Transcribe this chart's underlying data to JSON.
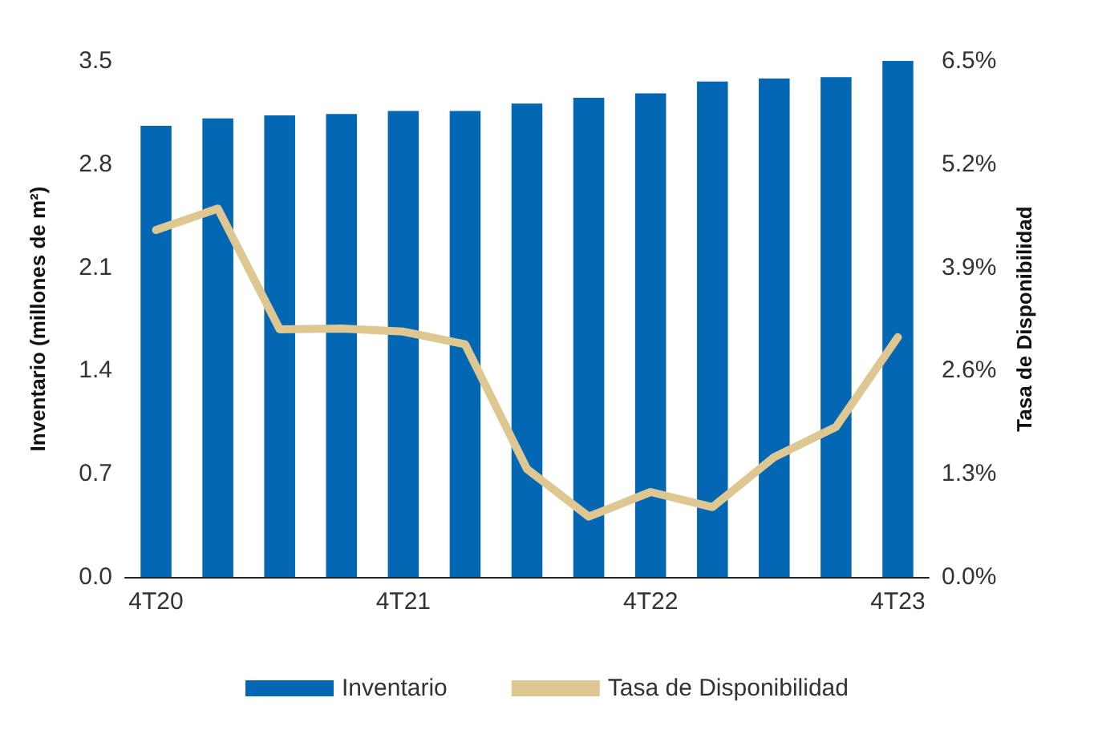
{
  "chart_data": {
    "type": "bar",
    "categories": [
      "4T20",
      null,
      null,
      null,
      "4T21",
      null,
      null,
      null,
      "4T22",
      null,
      null,
      null,
      "4T23"
    ],
    "series": [
      {
        "name": "Inventario",
        "color": "#0467b4",
        "values": [
          3.06,
          3.11,
          3.13,
          3.14,
          3.16,
          3.16,
          3.21,
          3.25,
          3.28,
          3.36,
          3.38,
          3.39,
          3.5
        ]
      },
      {
        "name": "Tasa de Disponibilidad",
        "type": "line",
        "axis": "y2",
        "color": "#dfc791",
        "values": [
          4.37,
          4.64,
          3.12,
          3.13,
          3.09,
          2.93,
          1.36,
          0.76,
          1.07,
          0.88,
          1.51,
          1.89,
          3.02
        ]
      }
    ],
    "ylabel": "Inventario (millones de m²)",
    "y2label": "Tasa de Disponibilidad",
    "ylim": [
      0,
      3.5
    ],
    "yticks": [
      {
        "value": 0,
        "label": "0.0"
      },
      0.7,
      1.4,
      2.1,
      2.8,
      3.5
    ],
    "y2lim": [
      0,
      6.5
    ],
    "y2ticks": [
      {
        "value": 0,
        "label": "0.0%"
      },
      {
        "value": 1.3,
        "label": "1.3%"
      },
      {
        "value": 2.6,
        "label": "2.6%"
      },
      {
        "value": 3.9,
        "label": "3.9%"
      },
      {
        "value": 5.2,
        "label": "5.2%"
      },
      {
        "value": 6.5,
        "label": "6.5%"
      }
    ],
    "grid": false,
    "legend": "bottom",
    "marker": "none",
    "line_style": "solid"
  }
}
